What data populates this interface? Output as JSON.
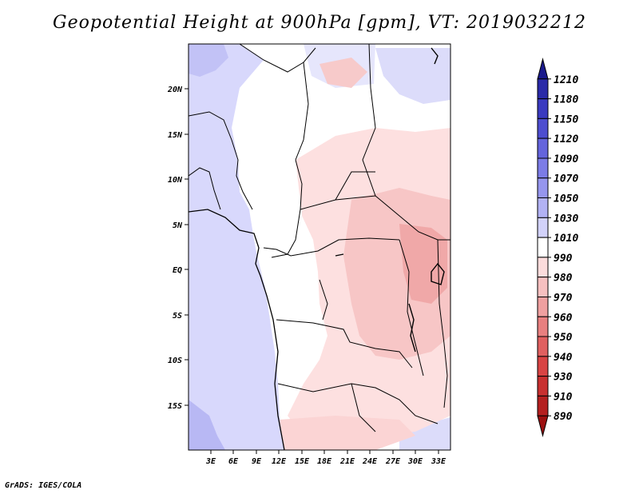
{
  "title": "Geopotential Height at 900hPa [gpm], VT: 2019032212",
  "credit": "GrADS: IGES/COLA",
  "map": {
    "lon_range": [
      0,
      34.5
    ],
    "lat_range": [
      -20,
      25
    ],
    "x_ticks": [
      "3E",
      "6E",
      "9E",
      "12E",
      "15E",
      "18E",
      "21E",
      "24E",
      "27E",
      "30E",
      "33E"
    ],
    "y_ticks": [
      "20N",
      "15N",
      "10N",
      "5N",
      "EQ",
      "5S",
      "10S",
      "15S"
    ]
  },
  "colorbar": {
    "levels": [
      "1210",
      "1180",
      "1150",
      "1120",
      "1090",
      "1070",
      "1050",
      "1030",
      "1010",
      "990",
      "980",
      "970",
      "960",
      "950",
      "940",
      "930",
      "910",
      "890"
    ],
    "colors": [
      "#1a1a8c",
      "#2a2aa8",
      "#3a3ac0",
      "#4e4ed0",
      "#6464dc",
      "#7c7ce6",
      "#9696ee",
      "#b2b2f4",
      "#d2d2fa",
      "#ffffff",
      "#fbdcdc",
      "#f6c0c0",
      "#efa0a0",
      "#e88080",
      "#e06060",
      "#d84444",
      "#c83030",
      "#b42020",
      "#9c1010"
    ]
  }
}
